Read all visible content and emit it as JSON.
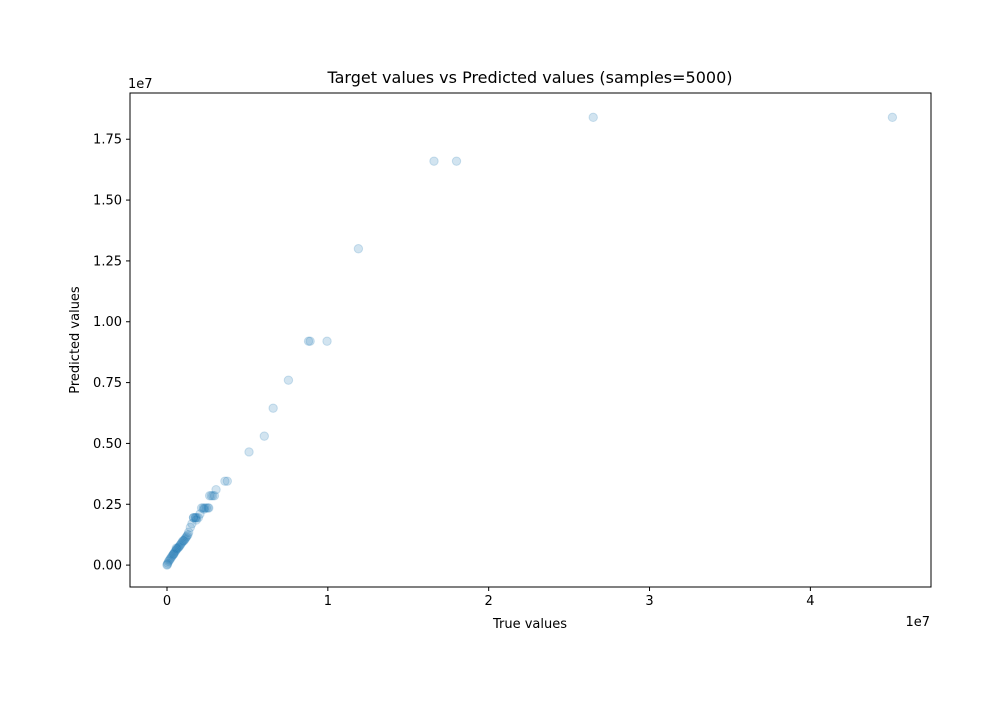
{
  "chart_data": {
    "type": "scatter",
    "title": "Target values vs Predicted values (samples=5000)",
    "xlabel": "True values",
    "ylabel": "Predicted values",
    "x_offset_label": "1e7",
    "y_offset_label": "1e7",
    "xlim": [
      -2300000,
      47500000
    ],
    "ylim": [
      -900000,
      19400000
    ],
    "x_ticks": [
      0,
      10000000,
      20000000,
      30000000,
      40000000
    ],
    "x_tick_labels": [
      "0",
      "1",
      "2",
      "3",
      "4"
    ],
    "y_ticks": [
      0,
      2500000,
      5000000,
      7500000,
      10000000,
      12500000,
      15000000,
      17500000
    ],
    "y_tick_labels": [
      "0.00",
      "0.25",
      "0.50",
      "0.75",
      "1.00",
      "1.25",
      "1.50",
      "1.75"
    ],
    "grid": false,
    "marker_color": "#1f77b4",
    "marker_alpha": 0.2,
    "series": [
      {
        "x": [
          45100000,
          26500000,
          18000000,
          16600000,
          11900000,
          9950000,
          8900000,
          8800000,
          7550000,
          6600000,
          6050000,
          5100000,
          3750000,
          3600000,
          3050000,
          2950000,
          2850000,
          2750000,
          2650000,
          2550000,
          2450000,
          2350000,
          2250000,
          2150000,
          2050000,
          1950000,
          1850000,
          1750000,
          1650000,
          1550000,
          1450000,
          1350000,
          1300000,
          1250000,
          1200000,
          1150000,
          1100000,
          1050000,
          1000000,
          950000,
          900000,
          850000,
          800000,
          750000,
          700000,
          650000,
          600000,
          550000,
          500000,
          450000,
          400000,
          350000,
          300000,
          250000,
          200000,
          150000,
          100000,
          50000,
          20000,
          0,
          1780000,
          1650000,
          1820000,
          2300000,
          2600000,
          580000,
          420000
        ],
        "y": [
          18400000,
          18400000,
          16600000,
          16600000,
          13000000,
          9200000,
          9200000,
          9200000,
          7600000,
          6450000,
          5300000,
          4650000,
          3450000,
          3450000,
          3100000,
          2850000,
          2850000,
          2850000,
          2850000,
          2350000,
          2350000,
          2350000,
          2350000,
          2350000,
          2100000,
          1950000,
          1950000,
          1950000,
          1950000,
          1700000,
          1550000,
          1350000,
          1250000,
          1200000,
          1150000,
          1100000,
          1050000,
          1000000,
          1000000,
          950000,
          900000,
          850000,
          800000,
          750000,
          720000,
          680000,
          650000,
          600000,
          550000,
          500000,
          450000,
          400000,
          350000,
          300000,
          250000,
          200000,
          150000,
          80000,
          30000,
          0,
          1950000,
          1950000,
          1850000,
          2300000,
          2350000,
          700000,
          450000
        ]
      }
    ]
  }
}
